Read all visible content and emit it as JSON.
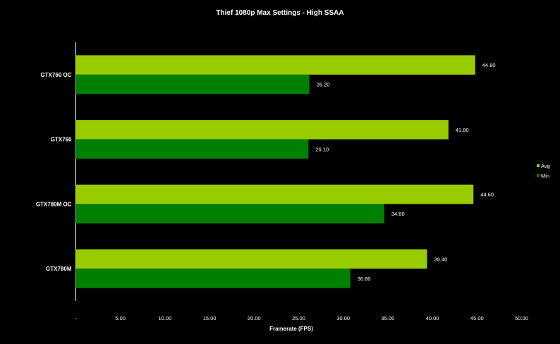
{
  "chart_data": {
    "type": "bar",
    "orientation": "horizontal",
    "title": "Thief 1080p Max Settings - High SSAA",
    "xlabel": "Framerate  (FPS)",
    "ylabel": "",
    "categories": [
      "GTX760 OC",
      "GTX760",
      "GTX780M OC",
      "GTX780M"
    ],
    "series": [
      {
        "name": "Avg",
        "color": "#99cc00",
        "values": [
          44.8,
          41.8,
          44.6,
          39.4
        ],
        "labels": [
          "44.80",
          "41.80",
          "44.60",
          "39.40"
        ]
      },
      {
        "name": "Min",
        "color": "#008000",
        "values": [
          26.2,
          26.1,
          34.6,
          30.8
        ],
        "labels": [
          "26.20",
          "26.10",
          "34.60",
          "30.80"
        ]
      }
    ],
    "xlim": [
      0,
      50
    ],
    "ticks": [
      0,
      5,
      10,
      15,
      20,
      25,
      30,
      35,
      40,
      45,
      50
    ],
    "tick_labels": [
      "-",
      "5.00",
      "10.00",
      "15.00",
      "20.00",
      "25.00",
      "30.00",
      "35.00",
      "40.00",
      "45.00",
      "50.00"
    ],
    "grid": false,
    "legend_position": "right",
    "background": "#000000",
    "text_color": "#ffffff"
  }
}
